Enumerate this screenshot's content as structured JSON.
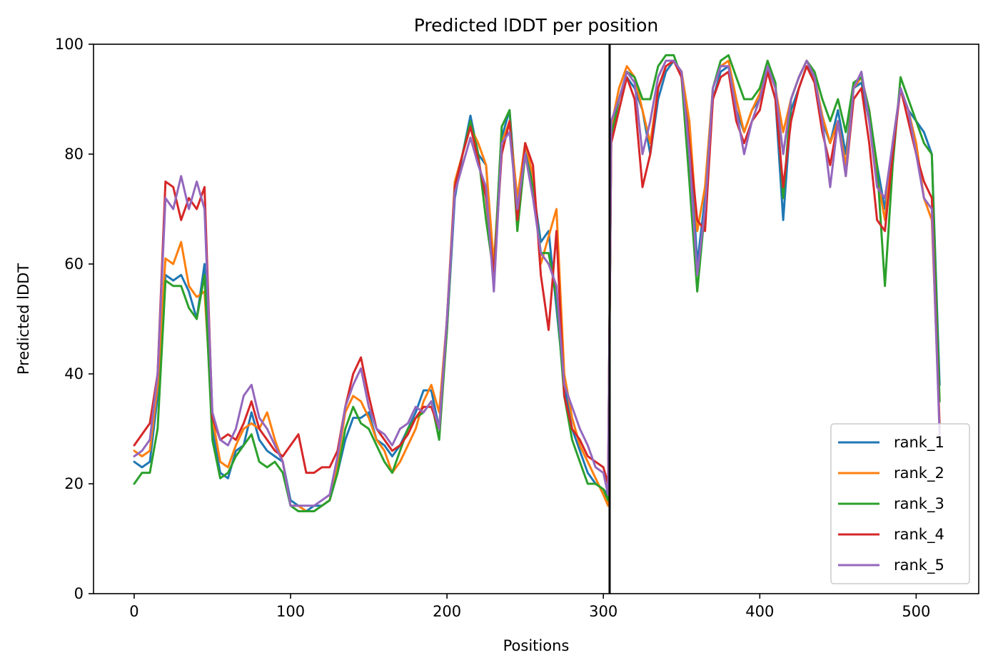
{
  "chart_data": {
    "type": "line",
    "title": "Predicted lDDT per position",
    "xlabel": "Positions",
    "ylabel": "Predicted lDDT",
    "xlim": [
      -26,
      540
    ],
    "ylim": [
      0,
      100
    ],
    "xticks": [
      0,
      100,
      200,
      300,
      400,
      500
    ],
    "yticks": [
      0,
      20,
      40,
      60,
      80,
      100
    ],
    "grid": false,
    "legend_position": "lower right",
    "vertical_line_x": 304,
    "series": [
      {
        "name": "rank_1",
        "color": "#1f77b4",
        "x": [
          0,
          5,
          10,
          15,
          20,
          25,
          30,
          35,
          40,
          45,
          50,
          55,
          60,
          65,
          70,
          75,
          80,
          85,
          90,
          95,
          100,
          105,
          110,
          115,
          120,
          125,
          130,
          135,
          140,
          145,
          150,
          155,
          160,
          165,
          170,
          175,
          180,
          185,
          190,
          195,
          200,
          205,
          210,
          215,
          220,
          225,
          230,
          235,
          240,
          245,
          250,
          255,
          260,
          265,
          270,
          275,
          280,
          285,
          290,
          295,
          300,
          303,
          305,
          310,
          315,
          320,
          325,
          330,
          335,
          340,
          345,
          350,
          355,
          360,
          365,
          370,
          375,
          380,
          385,
          390,
          395,
          400,
          405,
          410,
          415,
          420,
          425,
          430,
          435,
          440,
          445,
          450,
          455,
          460,
          465,
          470,
          475,
          480,
          485,
          490,
          495,
          500,
          505,
          510,
          515
        ],
        "y": [
          24,
          23,
          24,
          36,
          58,
          57,
          58,
          55,
          50,
          60,
          30,
          22,
          21,
          26,
          27,
          33,
          28,
          26,
          25,
          24,
          17,
          16,
          15,
          16,
          16,
          17,
          22,
          28,
          32,
          32,
          33,
          28,
          27,
          25,
          27,
          30,
          33,
          37,
          37,
          30,
          48,
          72,
          80,
          87,
          80,
          78,
          58,
          83,
          88,
          70,
          82,
          74,
          64,
          66,
          52,
          38,
          30,
          26,
          22,
          20,
          19,
          18,
          84,
          90,
          94,
          92,
          88,
          80,
          90,
          95,
          97,
          95,
          85,
          60,
          72,
          90,
          95,
          96,
          88,
          84,
          88,
          90,
          95,
          90,
          68,
          88,
          92,
          96,
          94,
          86,
          82,
          88,
          80,
          92,
          93,
          86,
          78,
          70,
          82,
          92,
          88,
          86,
          84,
          80,
          38
        ]
      },
      {
        "name": "rank_2",
        "color": "#ff7f0e",
        "x": [
          0,
          5,
          10,
          15,
          20,
          25,
          30,
          35,
          40,
          45,
          50,
          55,
          60,
          65,
          70,
          75,
          80,
          85,
          90,
          95,
          100,
          105,
          110,
          115,
          120,
          125,
          130,
          135,
          140,
          145,
          150,
          155,
          160,
          165,
          170,
          175,
          180,
          185,
          190,
          195,
          200,
          205,
          210,
          215,
          220,
          225,
          230,
          235,
          240,
          245,
          250,
          255,
          260,
          265,
          270,
          275,
          280,
          285,
          290,
          295,
          300,
          303,
          305,
          310,
          315,
          320,
          325,
          330,
          335,
          340,
          345,
          350,
          355,
          360,
          365,
          370,
          375,
          380,
          385,
          390,
          395,
          400,
          405,
          410,
          415,
          420,
          425,
          430,
          435,
          440,
          445,
          450,
          455,
          460,
          465,
          470,
          475,
          480,
          485,
          490,
          495,
          500,
          505,
          510,
          515
        ],
        "y": [
          26,
          25,
          26,
          38,
          61,
          60,
          64,
          56,
          54,
          55,
          32,
          24,
          23,
          27,
          30,
          31,
          30,
          33,
          28,
          24,
          16,
          16,
          15,
          15,
          16,
          17,
          24,
          33,
          36,
          35,
          32,
          28,
          26,
          22,
          24,
          27,
          30,
          35,
          38,
          33,
          50,
          75,
          80,
          85,
          82,
          78,
          60,
          82,
          86,
          72,
          82,
          76,
          60,
          65,
          70,
          40,
          32,
          27,
          24,
          21,
          18,
          16,
          85,
          92,
          96,
          94,
          88,
          82,
          92,
          96,
          97,
          95,
          86,
          66,
          74,
          92,
          96,
          97,
          90,
          84,
          88,
          91,
          96,
          92,
          84,
          90,
          94,
          97,
          94,
          87,
          82,
          86,
          78,
          92,
          94,
          88,
          76,
          68,
          82,
          92,
          88,
          82,
          72,
          68,
          31
        ]
      },
      {
        "name": "rank_3",
        "color": "#2ca02c",
        "x": [
          0,
          5,
          10,
          15,
          20,
          25,
          30,
          35,
          40,
          45,
          50,
          55,
          60,
          65,
          70,
          75,
          80,
          85,
          90,
          95,
          100,
          105,
          110,
          115,
          120,
          125,
          130,
          135,
          140,
          145,
          150,
          155,
          160,
          165,
          170,
          175,
          180,
          185,
          190,
          195,
          200,
          205,
          210,
          215,
          220,
          225,
          230,
          235,
          240,
          245,
          250,
          255,
          260,
          265,
          270,
          275,
          280,
          285,
          290,
          295,
          300,
          303,
          305,
          310,
          315,
          320,
          325,
          330,
          335,
          340,
          345,
          350,
          355,
          360,
          365,
          370,
          375,
          380,
          385,
          390,
          395,
          400,
          405,
          410,
          415,
          420,
          425,
          430,
          435,
          440,
          445,
          450,
          455,
          460,
          465,
          470,
          475,
          480,
          485,
          490,
          495,
          500,
          505,
          510,
          515
        ],
        "y": [
          20,
          22,
          22,
          30,
          57,
          56,
          56,
          52,
          50,
          58,
          28,
          21,
          22,
          25,
          27,
          29,
          24,
          23,
          24,
          22,
          16,
          15,
          15,
          15,
          16,
          17,
          22,
          30,
          34,
          31,
          30,
          27,
          24,
          22,
          26,
          30,
          32,
          33,
          35,
          28,
          48,
          74,
          80,
          86,
          80,
          68,
          58,
          85,
          88,
          66,
          80,
          74,
          62,
          62,
          54,
          36,
          28,
          24,
          20,
          20,
          19,
          17,
          83,
          90,
          95,
          94,
          90,
          90,
          96,
          98,
          98,
          94,
          75,
          55,
          70,
          92,
          97,
          98,
          94,
          90,
          90,
          92,
          97,
          93,
          72,
          90,
          94,
          97,
          95,
          90,
          86,
          90,
          84,
          93,
          94,
          88,
          78,
          56,
          78,
          94,
          90,
          86,
          82,
          80,
          35
        ]
      },
      {
        "name": "rank_4",
        "color": "#d62728",
        "x": [
          0,
          5,
          10,
          15,
          20,
          25,
          30,
          35,
          40,
          45,
          50,
          55,
          60,
          65,
          70,
          75,
          80,
          85,
          90,
          95,
          100,
          105,
          110,
          115,
          120,
          125,
          130,
          135,
          140,
          145,
          150,
          155,
          160,
          165,
          170,
          175,
          180,
          185,
          190,
          195,
          200,
          205,
          210,
          215,
          220,
          225,
          230,
          235,
          240,
          245,
          250,
          255,
          260,
          265,
          270,
          275,
          280,
          285,
          290,
          295,
          300,
          303,
          305,
          310,
          315,
          320,
          325,
          330,
          335,
          340,
          345,
          350,
          355,
          360,
          365,
          370,
          375,
          380,
          385,
          390,
          395,
          400,
          405,
          410,
          415,
          420,
          425,
          430,
          435,
          440,
          445,
          450,
          455,
          460,
          465,
          470,
          475,
          480,
          485,
          490,
          495,
          500,
          505,
          510,
          515
        ],
        "y": [
          27,
          29,
          31,
          40,
          75,
          74,
          68,
          72,
          70,
          74,
          32,
          28,
          29,
          28,
          31,
          35,
          30,
          28,
          26,
          25,
          27,
          29,
          22,
          22,
          23,
          23,
          26,
          34,
          40,
          43,
          36,
          30,
          28,
          26,
          27,
          29,
          32,
          34,
          34,
          30,
          50,
          74,
          80,
          85,
          79,
          72,
          58,
          80,
          86,
          68,
          82,
          78,
          58,
          48,
          66,
          36,
          30,
          28,
          25,
          24,
          23,
          20,
          82,
          88,
          94,
          90,
          74,
          80,
          92,
          96,
          97,
          94,
          82,
          68,
          66,
          90,
          94,
          95,
          86,
          82,
          86,
          88,
          95,
          90,
          74,
          86,
          92,
          96,
          93,
          84,
          78,
          86,
          76,
          90,
          92,
          82,
          68,
          66,
          80,
          92,
          86,
          80,
          75,
          72,
          30
        ]
      },
      {
        "name": "rank_5",
        "color": "#9467bd",
        "x": [
          0,
          5,
          10,
          15,
          20,
          25,
          30,
          35,
          40,
          45,
          50,
          55,
          60,
          65,
          70,
          75,
          80,
          85,
          90,
          95,
          100,
          105,
          110,
          115,
          120,
          125,
          130,
          135,
          140,
          145,
          150,
          155,
          160,
          165,
          170,
          175,
          180,
          185,
          190,
          195,
          200,
          205,
          210,
          215,
          220,
          225,
          230,
          235,
          240,
          245,
          250,
          255,
          260,
          265,
          270,
          275,
          280,
          285,
          290,
          295,
          300,
          303,
          305,
          310,
          315,
          320,
          325,
          330,
          335,
          340,
          345,
          350,
          355,
          360,
          365,
          370,
          375,
          380,
          385,
          390,
          395,
          400,
          405,
          410,
          415,
          420,
          425,
          430,
          435,
          440,
          445,
          450,
          455,
          460,
          465,
          470,
          475,
          480,
          485,
          490,
          495,
          500,
          505,
          510,
          515
        ],
        "y": [
          25,
          26,
          28,
          40,
          72,
          70,
          76,
          70,
          75,
          70,
          33,
          28,
          27,
          30,
          36,
          38,
          32,
          30,
          27,
          24,
          16,
          16,
          16,
          16,
          17,
          18,
          25,
          34,
          38,
          41,
          34,
          30,
          29,
          27,
          30,
          31,
          34,
          33,
          35,
          30,
          50,
          73,
          78,
          83,
          78,
          74,
          55,
          82,
          84,
          70,
          80,
          72,
          62,
          60,
          56,
          38,
          34,
          30,
          27,
          23,
          22,
          18,
          86,
          90,
          95,
          93,
          80,
          86,
          94,
          97,
          97,
          95,
          80,
          58,
          70,
          92,
          96,
          96,
          88,
          80,
          86,
          90,
          96,
          92,
          80,
          90,
          94,
          97,
          94,
          86,
          74,
          86,
          76,
          92,
          95,
          86,
          74,
          72,
          82,
          92,
          88,
          80,
          72,
          70,
          29
        ]
      }
    ]
  }
}
